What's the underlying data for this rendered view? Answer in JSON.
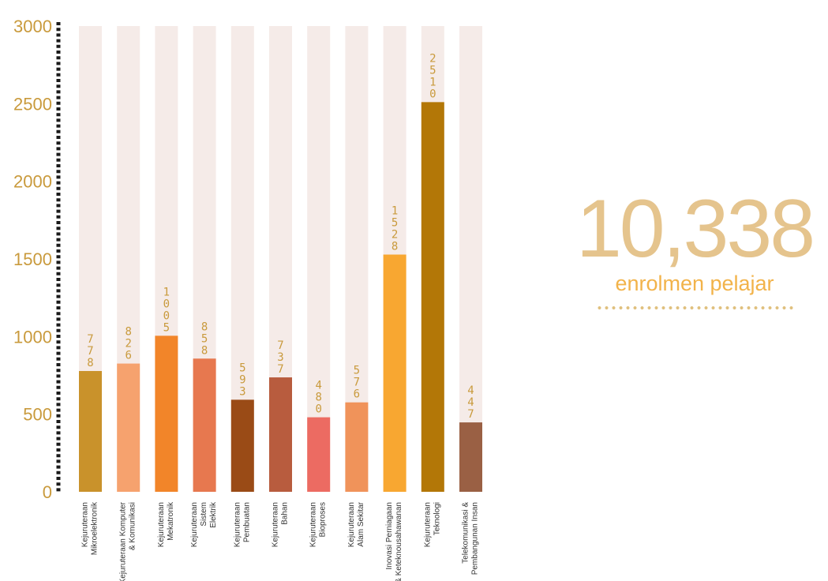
{
  "chart_data": {
    "type": "bar",
    "categories": [
      [
        "Kejuruteraan",
        "Mikroelektronik"
      ],
      [
        "Kejuruteraan Komputer",
        "& Komunikasi"
      ],
      [
        "Kejuruteraan",
        "Mekatronik"
      ],
      [
        "Kejuruteraan",
        "Sistem",
        "Elektrik"
      ],
      [
        "Kejuruteraan",
        "Pembuatan"
      ],
      [
        "Kejuruteraan",
        "Bahan"
      ],
      [
        "Kejuruteraan",
        "Bioproses"
      ],
      [
        "Kejuruteraan",
        "Alam Sekitar"
      ],
      [
        "Inovasi Perniagaan",
        "& Keteknousahawanan"
      ],
      [
        "Kejuruteraan",
        "Teknologi"
      ],
      [
        "Telekomunikasi &",
        "Pembangunan Insan"
      ]
    ],
    "values": [
      778,
      826,
      1005,
      858,
      593,
      737,
      480,
      576,
      1528,
      2510,
      447
    ],
    "colors": [
      "#c9922b",
      "#f6a26e",
      "#f28529",
      "#e7784f",
      "#9a4b16",
      "#b85c3e",
      "#ec6b62",
      "#f0935a",
      "#f8a731",
      "#b37707",
      "#9a6044"
    ],
    "track_color": "#f5ebe8",
    "axis_color": "#1a1a1a",
    "label_color": "#c99a3c",
    "yticks": [
      "0",
      "500",
      "1000",
      "1500",
      "2000",
      "2500",
      "3000"
    ],
    "ylim": [
      0,
      3000
    ],
    "grid": false
  },
  "kpi": {
    "value": "10,338",
    "label": "enrolmen pelajar",
    "value_color": "#e5c48d",
    "label_color": "#f2b34a"
  }
}
